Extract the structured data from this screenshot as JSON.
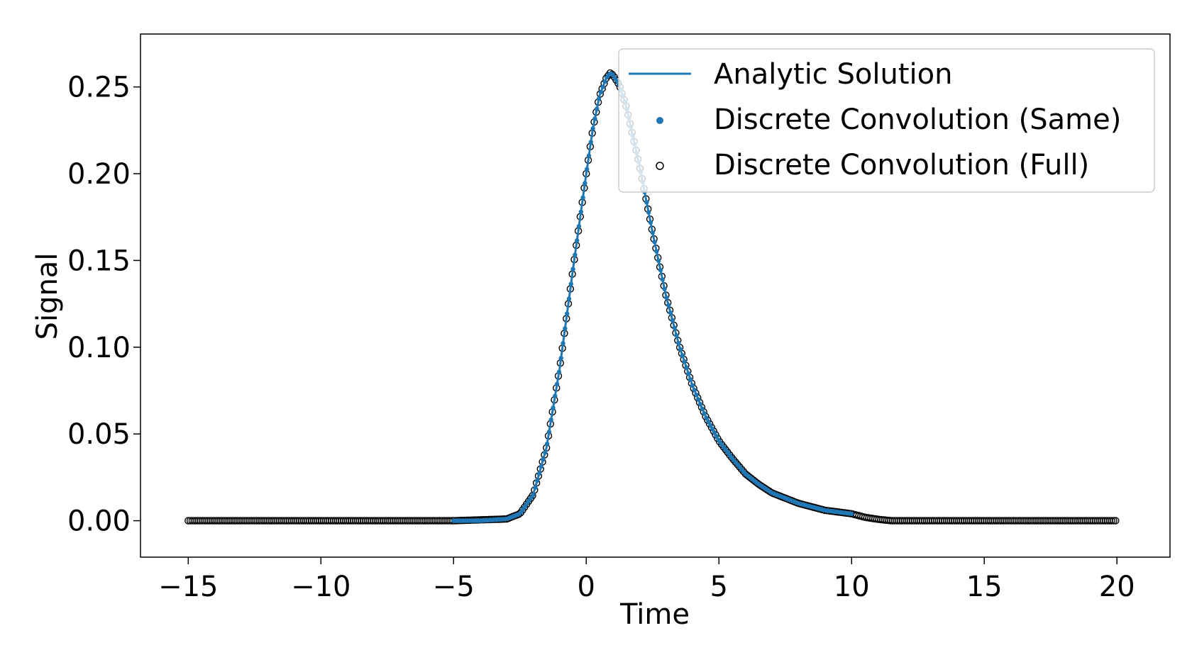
{
  "chart_data": {
    "type": "line",
    "title": "",
    "xlabel": "Time",
    "ylabel": "Signal",
    "xlim": [
      -16.8,
      22.0
    ],
    "ylim": [
      -0.021,
      0.2805
    ],
    "xticks": [
      -15,
      -10,
      -5,
      0,
      5,
      10,
      15,
      20
    ],
    "xtick_labels": [
      "−15",
      "−10",
      "−5",
      "0",
      "5",
      "10",
      "15",
      "20"
    ],
    "yticks": [
      0.0,
      0.05,
      0.1,
      0.15,
      0.2,
      0.25
    ],
    "ytick_labels": [
      "0.00",
      "0.05",
      "0.10",
      "0.15",
      "0.20",
      "0.25"
    ],
    "grid": false,
    "legend_position": "top-right",
    "colors": {
      "analytic": "#1f77b4",
      "same": "#1f77b4",
      "full_edge": "#000000"
    },
    "series": [
      {
        "name": "Analytic Solution",
        "style": "line",
        "x": [
          -5.0,
          -4.0,
          -3.0,
          -2.5,
          -2.0,
          -1.5,
          -1.0,
          -0.5,
          0.0,
          0.25,
          0.5,
          0.75,
          0.9,
          1.0,
          1.25,
          1.5,
          2.0,
          2.5,
          3.0,
          3.5,
          4.0,
          4.5,
          5.0,
          5.5,
          6.0,
          6.5,
          7.0,
          8.0,
          9.0,
          10.0
        ],
        "y": [
          0.0,
          0.0,
          0.001,
          0.004,
          0.015,
          0.042,
          0.088,
          0.145,
          0.2,
          0.226,
          0.245,
          0.255,
          0.258,
          0.257,
          0.251,
          0.239,
          0.205,
          0.166,
          0.13,
          0.101,
          0.078,
          0.06,
          0.046,
          0.036,
          0.027,
          0.021,
          0.016,
          0.01,
          0.006,
          0.004
        ]
      },
      {
        "name": "Discrete Convolution (Same)",
        "style": "dots",
        "x": [
          -5.0,
          -4.0,
          -3.0,
          -2.5,
          -2.0,
          -1.5,
          -1.0,
          -0.5,
          0.0,
          0.25,
          0.5,
          0.75,
          0.9,
          1.0,
          1.25,
          1.5,
          2.0,
          2.5,
          3.0,
          3.5,
          4.0,
          4.5,
          5.0,
          5.5,
          6.0,
          6.5,
          7.0,
          8.0,
          9.0,
          10.0
        ],
        "y": [
          0.0,
          0.0,
          0.001,
          0.004,
          0.015,
          0.042,
          0.088,
          0.145,
          0.2,
          0.226,
          0.245,
          0.255,
          0.258,
          0.257,
          0.251,
          0.239,
          0.205,
          0.166,
          0.13,
          0.101,
          0.078,
          0.06,
          0.046,
          0.036,
          0.027,
          0.021,
          0.016,
          0.01,
          0.006,
          0.004
        ]
      },
      {
        "name": "Discrete Convolution (Full)",
        "style": "open-circles",
        "x": [
          -15.0,
          -5.0,
          -3.0,
          -2.5,
          -2.0,
          -1.5,
          -1.0,
          -0.5,
          0.0,
          0.25,
          0.5,
          0.75,
          0.9,
          1.0,
          1.25,
          1.5,
          2.0,
          2.5,
          3.0,
          3.5,
          4.0,
          4.5,
          5.0,
          5.5,
          6.0,
          6.5,
          7.0,
          8.0,
          9.0,
          10.0,
          10.5,
          11.0,
          11.5,
          12.0,
          15.0,
          20.0
        ],
        "y": [
          0.0,
          0.0,
          0.001,
          0.004,
          0.015,
          0.042,
          0.088,
          0.145,
          0.2,
          0.226,
          0.245,
          0.255,
          0.258,
          0.257,
          0.251,
          0.239,
          0.205,
          0.166,
          0.13,
          0.101,
          0.078,
          0.06,
          0.046,
          0.036,
          0.027,
          0.021,
          0.016,
          0.01,
          0.006,
          0.004,
          0.002,
          0.0008,
          0.0,
          0.0,
          0.0,
          0.0
        ]
      }
    ]
  }
}
